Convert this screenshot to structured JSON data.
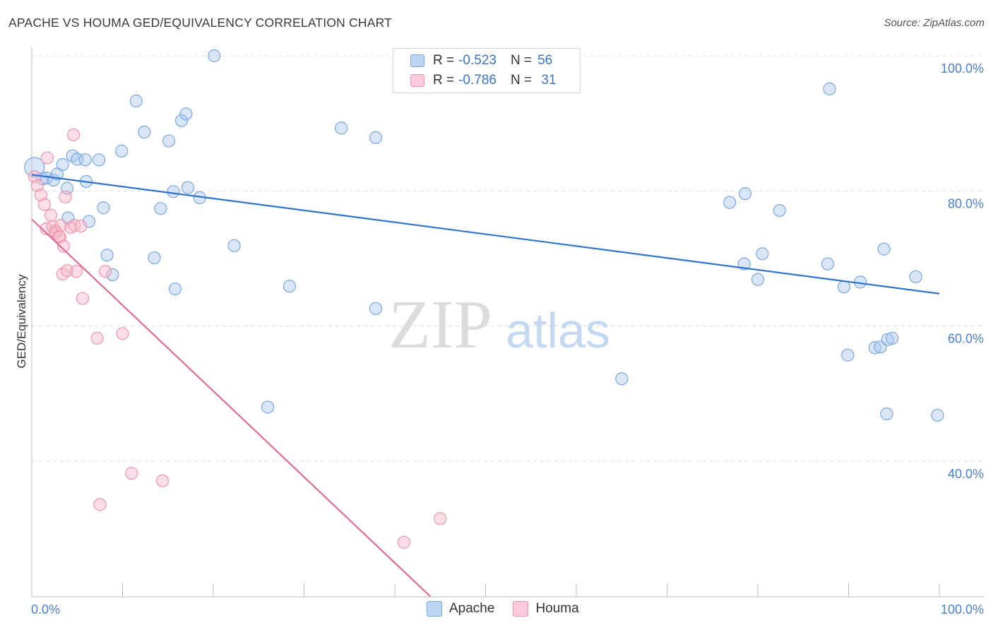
{
  "title": "APACHE VS HOUMA GED/EQUIVALENCY CORRELATION CHART",
  "source": "Source: ZipAtlas.com",
  "watermark": {
    "zip": "ZIP",
    "atlas": "atlas"
  },
  "legend": {
    "rows": [
      {
        "r_label": "R = ",
        "r_value": "-0.523",
        "n_label": "N = ",
        "n_value": "56"
      },
      {
        "r_label": "R = ",
        "r_value": "-0.786",
        "n_label": "N = ",
        "n_value": " 31"
      }
    ]
  },
  "bottom_legend": [
    {
      "label": "Apache"
    },
    {
      "label": "Houma"
    }
  ],
  "colors": {
    "apache_fill": "#a9c8f0",
    "apache_stroke": "#7aa6e0",
    "apache_line": "#2f72d0",
    "houma_fill": "#f7b6c8",
    "houma_stroke": "#ee95ae",
    "houma_line": "#e06b93",
    "tick_text": "#4b7fd1",
    "grid": "#dddddd"
  },
  "chart_data": {
    "type": "scatter",
    "title": "APACHE VS HOUMA GED/EQUIVALENCY CORRELATION CHART",
    "xlabel": "",
    "ylabel": "GED/Equivalency",
    "xlim": [
      0,
      100
    ],
    "ylim": [
      20,
      102
    ],
    "x_tick_labels": [
      "0.0%",
      "100.0%"
    ],
    "y_ticks": [
      40,
      60,
      80,
      100
    ],
    "y_tick_labels": [
      "40.0%",
      "60.0%",
      "80.0%",
      "100.0%"
    ],
    "grid": true,
    "series": [
      {
        "name": "Apache",
        "r": -0.523,
        "n": 56,
        "trend": {
          "x0": 0,
          "y0": 82.4,
          "x1": 100,
          "y1": 64.8
        },
        "points": [
          [
            0.3,
            83.5
          ],
          [
            1.2,
            81.8
          ],
          [
            1.6,
            81.9
          ],
          [
            2.4,
            81.6
          ],
          [
            2.8,
            82.5
          ],
          [
            3.4,
            83.9
          ],
          [
            3.9,
            80.4
          ],
          [
            4.5,
            85.2
          ],
          [
            5.0,
            84.7
          ],
          [
            5.9,
            84.6
          ],
          [
            6.0,
            81.4
          ],
          [
            7.4,
            84.6
          ],
          [
            7.9,
            77.5
          ],
          [
            8.3,
            70.5
          ],
          [
            8.9,
            67.6
          ],
          [
            9.9,
            85.9
          ],
          [
            11.5,
            93.3
          ],
          [
            12.4,
            88.7
          ],
          [
            13.5,
            70.1
          ],
          [
            14.2,
            77.4
          ],
          [
            15.1,
            87.4
          ],
          [
            15.6,
            79.9
          ],
          [
            15.8,
            65.5
          ],
          [
            16.5,
            90.4
          ],
          [
            17.0,
            91.4
          ],
          [
            17.2,
            80.5
          ],
          [
            18.5,
            79.0
          ],
          [
            20.1,
            100.0
          ],
          [
            22.3,
            71.9
          ],
          [
            26.0,
            48.0
          ],
          [
            28.4,
            65.9
          ],
          [
            34.1,
            89.3
          ],
          [
            37.9,
            62.6
          ],
          [
            37.9,
            87.9
          ],
          [
            65.0,
            52.2
          ],
          [
            76.9,
            78.3
          ],
          [
            78.5,
            69.2
          ],
          [
            78.6,
            79.6
          ],
          [
            80.0,
            66.9
          ],
          [
            80.5,
            70.7
          ],
          [
            82.4,
            77.1
          ],
          [
            87.7,
            69.2
          ],
          [
            87.9,
            95.1
          ],
          [
            89.5,
            65.8
          ],
          [
            89.9,
            55.7
          ],
          [
            91.3,
            66.5
          ],
          [
            92.9,
            56.8
          ],
          [
            93.5,
            56.9
          ],
          [
            93.9,
            71.4
          ],
          [
            94.2,
            47.0
          ],
          [
            94.3,
            58.0
          ],
          [
            94.8,
            58.2
          ],
          [
            97.4,
            67.3
          ],
          [
            99.8,
            46.8
          ],
          [
            4.0,
            76.0
          ],
          [
            6.3,
            75.5
          ]
        ]
      },
      {
        "name": "Houma",
        "r": -0.786,
        "n": 31,
        "trend": {
          "x0": 0,
          "y0": 75.8,
          "x1": 43.9,
          "y1": 20.0
        },
        "points": [
          [
            0.3,
            82.1
          ],
          [
            0.6,
            80.8
          ],
          [
            1.0,
            79.4
          ],
          [
            1.4,
            78.0
          ],
          [
            1.6,
            74.4
          ],
          [
            1.7,
            84.9
          ],
          [
            2.1,
            76.4
          ],
          [
            2.3,
            74.7
          ],
          [
            2.6,
            74.1
          ],
          [
            2.7,
            73.8
          ],
          [
            3.0,
            73.3
          ],
          [
            3.1,
            73.2
          ],
          [
            3.2,
            74.9
          ],
          [
            3.4,
            67.7
          ],
          [
            3.5,
            71.8
          ],
          [
            3.7,
            79.1
          ],
          [
            3.9,
            68.2
          ],
          [
            4.3,
            74.6
          ],
          [
            4.6,
            88.3
          ],
          [
            4.7,
            74.9
          ],
          [
            4.9,
            68.1
          ],
          [
            5.4,
            74.8
          ],
          [
            5.6,
            64.1
          ],
          [
            7.2,
            58.2
          ],
          [
            7.5,
            33.6
          ],
          [
            8.1,
            68.1
          ],
          [
            10.0,
            58.9
          ],
          [
            11.0,
            38.2
          ],
          [
            14.4,
            37.1
          ],
          [
            41.0,
            28.0
          ],
          [
            45.0,
            31.5
          ]
        ]
      }
    ]
  }
}
